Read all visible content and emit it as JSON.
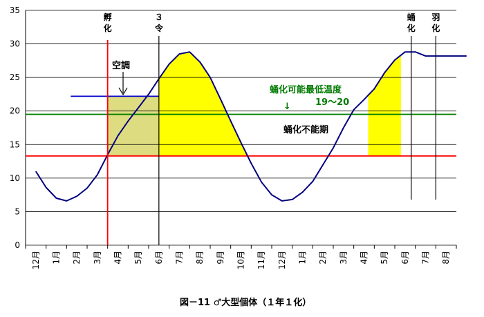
{
  "chart_data": {
    "type": "line",
    "title": "",
    "caption": "図－11 ♂大型個体（１年１化）",
    "ylim": [
      0,
      35
    ],
    "yticks": [
      0,
      5,
      10,
      15,
      20,
      25,
      30,
      35
    ],
    "x_tick_labels": [
      "12月",
      "1月",
      "2月",
      "3月",
      "4月",
      "5月",
      "6月",
      "7月",
      "8月",
      "9月",
      "10月",
      "11月",
      "12月",
      "1月",
      "2月",
      "3月",
      "4月",
      "5月",
      "6月",
      "7月",
      "8月"
    ],
    "grid": "horizontal",
    "series": [
      {
        "color": "#000080",
        "x": [
          0,
          0.5,
          1,
          1.5,
          2,
          2.5,
          3,
          3.5,
          4,
          4.5,
          5,
          5.5,
          6,
          6.5,
          7,
          7.5,
          8,
          8.5,
          9,
          9.5,
          10,
          10.5,
          11,
          11.5,
          12,
          12.5,
          13,
          13.5,
          14,
          14.5,
          15,
          15.5,
          16,
          16.5,
          17,
          17.5,
          18,
          18.5,
          19,
          19.5,
          20,
          20.5,
          21
        ],
        "y": [
          11,
          8.6,
          7,
          6.6,
          7.3,
          8.5,
          10.5,
          13.5,
          16.3,
          18.5,
          20.5,
          22.5,
          24.8,
          27,
          28.5,
          28.8,
          27.3,
          25,
          21.8,
          18.5,
          15.3,
          12.2,
          9.4,
          7.5,
          6.6,
          6.8,
          7.9,
          9.5,
          12,
          14.5,
          17.5,
          20.2,
          21.7,
          23.3,
          25.7,
          27.6,
          28.8,
          28.8,
          28.2,
          28.2,
          28.2,
          28.2,
          28.2
        ]
      }
    ],
    "reference_lines": [
      {
        "orientation": "horizontal",
        "y": 19.5,
        "color": "#008000",
        "label": "蛹化可能最低温度",
        "sublabel": "19～20"
      },
      {
        "orientation": "horizontal",
        "y": 13.3,
        "color": "#ff0000"
      },
      {
        "orientation": "horizontal",
        "y": 22.2,
        "color": "#0000cc",
        "x_from": 1.7,
        "x_to": 6
      },
      {
        "orientation": "vertical",
        "x": 3.5,
        "color": "#ff0000",
        "label": "孵化"
      },
      {
        "orientation": "vertical",
        "x": 6,
        "color": "#000000",
        "label": "３令"
      },
      {
        "orientation": "vertical",
        "x": 18.3,
        "color": "#000000",
        "label": "蛹化"
      },
      {
        "orientation": "vertical",
        "x": 19.5,
        "color": "#000000",
        "label": "羽化"
      }
    ],
    "annotations": [
      {
        "text": "空調",
        "arrow": "down"
      },
      {
        "text": "蛹化不能期"
      },
      {
        "text": "↓"
      }
    ],
    "shaded_regions": [
      {
        "color": "#dedc80",
        "x_from": 3.5,
        "x_to": 6,
        "y_low": 13.3,
        "y_high": 22.2
      },
      {
        "color": "#ffff00",
        "x_from": 6,
        "x_to": 11.5,
        "y_low": 13.3,
        "description": "area under curve above red line"
      },
      {
        "color": "#ffff00",
        "x_from": 16.2,
        "x_to": 17.8,
        "y_low": 13.3,
        "description": "area under curve above red line"
      }
    ]
  }
}
